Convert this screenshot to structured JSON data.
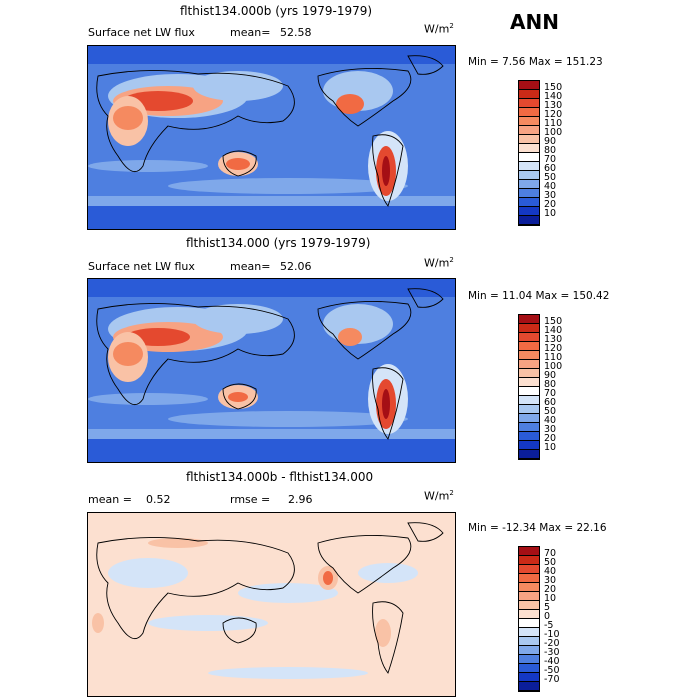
{
  "season": "ANN",
  "panels": [
    {
      "title": "flthist134.000b (yrs 1979-1979)",
      "left_label": "Surface net LW flux",
      "mean_label": "mean=",
      "mean_value": "52.58",
      "units": "W/m",
      "units_sup": "2",
      "minmax": "Min =   7.56 Max = 151.23",
      "colorbar_labels": [
        "150",
        "140",
        "130",
        "120",
        "110",
        "100",
        "90",
        "80",
        "70",
        "60",
        "50",
        "40",
        "30",
        "20",
        "10"
      ],
      "colors": [
        "#a50f15",
        "#cb2a17",
        "#e4492f",
        "#f16a43",
        "#f58a60",
        "#f7a383",
        "#f9c2a6",
        "#fce0d0",
        "#ffffff",
        "#d4e4f8",
        "#a9c8f0",
        "#7fa8ea",
        "#4e7fe0",
        "#2a5bd7",
        "#1438c4",
        "#0b1e9a"
      ]
    },
    {
      "title": "flthist134.000 (yrs 1979-1979)",
      "left_label": "Surface net LW flux",
      "mean_label": "mean=",
      "mean_value": "52.06",
      "units": "W/m",
      "units_sup": "2",
      "minmax": "Min =  11.04 Max = 150.42",
      "colorbar_labels": [
        "150",
        "140",
        "130",
        "120",
        "110",
        "100",
        "90",
        "80",
        "70",
        "60",
        "50",
        "40",
        "30",
        "20",
        "10"
      ],
      "colors": [
        "#a50f15",
        "#cb2a17",
        "#e4492f",
        "#f16a43",
        "#f58a60",
        "#f7a383",
        "#f9c2a6",
        "#fce0d0",
        "#ffffff",
        "#d4e4f8",
        "#a9c8f0",
        "#7fa8ea",
        "#4e7fe0",
        "#2a5bd7",
        "#1438c4",
        "#0b1e9a"
      ]
    },
    {
      "title": "flthist134.000b - flthist134.000",
      "left_label": "mean =",
      "mean_label": "",
      "mean_value": "0.52",
      "rmse_label": "rmse =",
      "rmse_value": "2.96",
      "units": "W/m",
      "units_sup": "2",
      "minmax": "Min = -12.34 Max =  22.16",
      "colorbar_labels": [
        "70",
        "50",
        "40",
        "30",
        "20",
        "10",
        "5",
        "0",
        "-5",
        "-10",
        "-20",
        "-30",
        "-40",
        "-50",
        "-70"
      ],
      "colors": [
        "#a50f15",
        "#cb2a17",
        "#e4492f",
        "#f16a43",
        "#f58a60",
        "#f7a383",
        "#f9c2a6",
        "#fce0d0",
        "#ffffff",
        "#d4e4f8",
        "#a9c8f0",
        "#7fa8ea",
        "#4e7fe0",
        "#2a5bd7",
        "#1438c4",
        "#0b1e9a"
      ]
    }
  ]
}
